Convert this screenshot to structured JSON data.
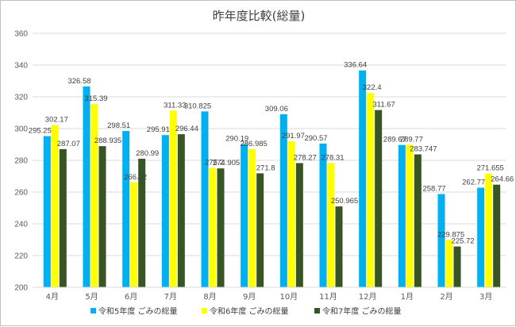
{
  "chart_data": {
    "type": "bar",
    "title": "昨年度比較(総量)",
    "categories": [
      "4月",
      "5月",
      "6月",
      "7月",
      "8月",
      "9月",
      "10月",
      "11月",
      "12月",
      "1月",
      "2月",
      "3月"
    ],
    "series": [
      {
        "name": "令和5年度 ごみの総量",
        "color": "#00b0f0",
        "values": [
          295.25,
          326.58,
          298.51,
          295.91,
          310.825,
          290.19,
          309.06,
          290.57,
          336.64,
          289.67,
          258.77,
          262.77
        ]
      },
      {
        "name": "令和6年度 ごみの総量",
        "color": "#ffff00",
        "values": [
          302.17,
          315.39,
          266.12,
          311.33,
          275.2,
          286.985,
          291.97,
          278.31,
          322.4,
          289.77,
          229.875,
          271.655
        ]
      },
      {
        "name": "令和7年度 ごみの総量",
        "color": "#375623",
        "values": [
          287.07,
          288.935,
          280.99,
          296.44,
          274.905,
          271.8,
          278.27,
          250.965,
          311.67,
          283.747,
          225.72,
          264.66
        ]
      }
    ],
    "ylim": [
      200,
      360
    ],
    "yticks": [
      200,
      220,
      240,
      260,
      280,
      300,
      320,
      340,
      360
    ],
    "grid": true,
    "legend_position": "bottom",
    "xlabel": "",
    "ylabel": ""
  }
}
